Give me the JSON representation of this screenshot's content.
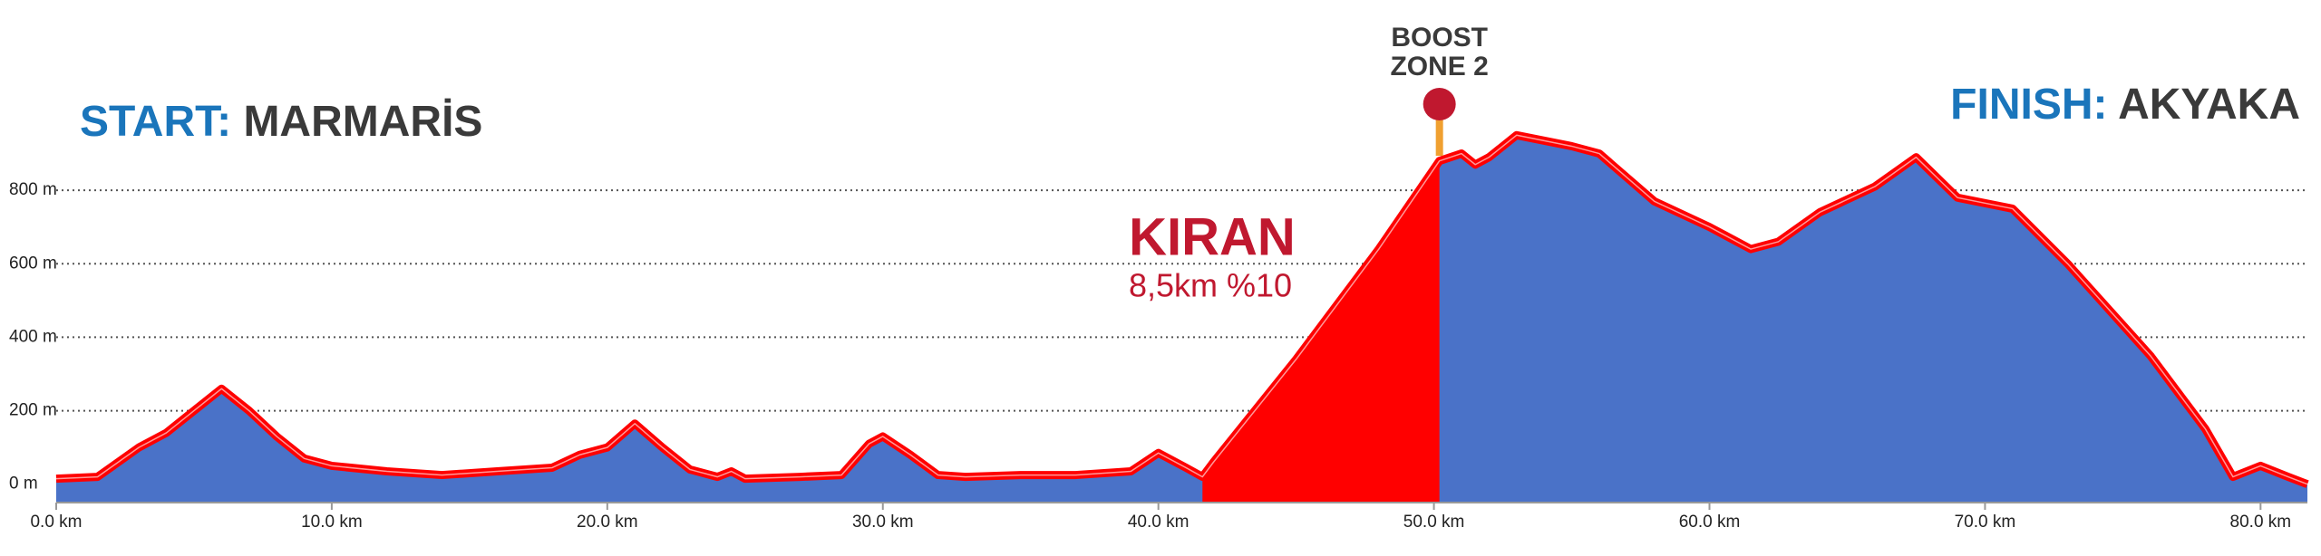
{
  "chart_data": {
    "type": "area",
    "start": {
      "prefix": "START:",
      "name": "MARMARİS"
    },
    "finish": {
      "prefix": "FINISH:",
      "name": "AKYAKA"
    },
    "climb": {
      "name": "KIRAN",
      "detail": "8,5km %10",
      "start": 41.6,
      "end": 50.2,
      "color": "#ff0000"
    },
    "marker": {
      "lines": [
        "BOOST",
        "ZONE 2"
      ],
      "x": 50.2,
      "color": "#c0182f",
      "stem_color": "#f0a030"
    },
    "x": [
      0,
      1.5,
      3,
      4,
      5,
      6,
      7,
      8,
      9,
      10,
      12,
      14,
      16,
      18,
      19,
      20,
      21,
      22,
      23,
      24,
      24.5,
      25,
      27,
      28.5,
      29.5,
      30,
      31,
      32,
      33,
      35,
      37,
      39,
      40,
      41,
      41.6,
      42,
      45,
      48,
      50.2,
      51,
      51.5,
      52,
      53,
      55,
      56,
      58,
      60,
      61.5,
      62.5,
      64,
      66,
      67.5,
      69,
      71,
      73,
      76,
      78,
      79,
      80,
      81,
      81.7
    ],
    "values": [
      15,
      20,
      100,
      140,
      200,
      260,
      200,
      130,
      70,
      50,
      35,
      25,
      35,
      45,
      80,
      100,
      165,
      100,
      40,
      20,
      35,
      15,
      20,
      25,
      110,
      130,
      80,
      25,
      20,
      25,
      25,
      35,
      85,
      45,
      20,
      60,
      340,
      640,
      880,
      900,
      870,
      890,
      950,
      920,
      900,
      770,
      700,
      640,
      660,
      740,
      810,
      890,
      780,
      750,
      600,
      350,
      150,
      20,
      50,
      20,
      0
    ],
    "color": "#4a72c8",
    "line_color": "#ff0000",
    "xlim": [
      0,
      81.7
    ],
    "ylim": [
      -50,
      1000
    ],
    "xticks": [
      {
        "value": 0,
        "label": "0.0 km"
      },
      {
        "value": 10,
        "label": "10.0 km"
      },
      {
        "value": 20,
        "label": "20.0 km"
      },
      {
        "value": 30,
        "label": "30.0 km"
      },
      {
        "value": 40,
        "label": "40.0 km"
      },
      {
        "value": 50,
        "label": "50.0 km"
      },
      {
        "value": 60,
        "label": "60.0 km"
      },
      {
        "value": 70,
        "label": "70.0 km"
      },
      {
        "value": 80,
        "label": "80.0 km"
      }
    ],
    "yticks": [
      {
        "value": 0,
        "label": "0 m"
      },
      {
        "value": 200,
        "label": "200 m"
      },
      {
        "value": 400,
        "label": "400 m"
      },
      {
        "value": 600,
        "label": "600 m"
      },
      {
        "value": 800,
        "label": "800 m"
      }
    ],
    "grid": true
  }
}
